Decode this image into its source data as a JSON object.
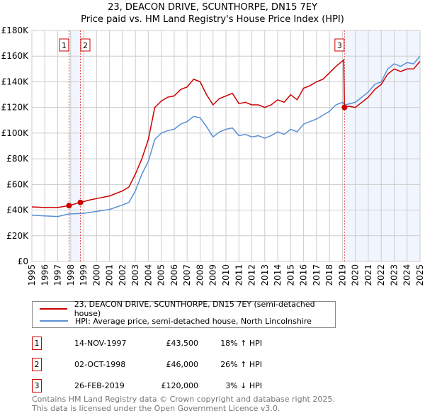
{
  "chart_data": {
    "type": "line",
    "title": "23, DEACON DRIVE, SCUNTHORPE, DN15 7EY",
    "subtitle": "Price paid vs. HM Land Registry's House Price Index (HPI)",
    "xlim": [
      1995,
      2025
    ],
    "ylim": [
      0,
      180000
    ],
    "y_ticks": [
      0,
      20000,
      40000,
      60000,
      80000,
      100000,
      120000,
      140000,
      160000,
      180000
    ],
    "y_tick_labels": [
      "£0",
      "£20K",
      "£40K",
      "£60K",
      "£80K",
      "£100K",
      "£120K",
      "£140K",
      "£160K",
      "£180K"
    ],
    "x_ticks": [
      1995,
      1996,
      1997,
      1998,
      1999,
      2000,
      2001,
      2002,
      2003,
      2004,
      2005,
      2006,
      2007,
      2008,
      2009,
      2010,
      2011,
      2012,
      2013,
      2014,
      2015,
      2016,
      2017,
      2018,
      2019,
      2020,
      2021,
      2022,
      2023,
      2024,
      2025
    ],
    "grid": true,
    "series": [
      {
        "name": "23, DEACON DRIVE, SCUNTHORPE, DN15 7EY (semi-detached house)",
        "color": "#cc0000",
        "x": [
          1995,
          1996,
          1997,
          1997.87,
          1998.75,
          1999.5,
          2000,
          2001,
          2002,
          2002.5,
          2003,
          2003.5,
          2004,
          2004.5,
          2005,
          2005.5,
          2006,
          2006.5,
          2007,
          2007.5,
          2008,
          2008.5,
          2009,
          2009.5,
          2010,
          2010.5,
          2011,
          2011.5,
          2012,
          2012.5,
          2013,
          2013.5,
          2014,
          2014.5,
          2015,
          2015.5,
          2016,
          2016.5,
          2017,
          2017.5,
          2018,
          2018.5,
          2019.1,
          2019.16,
          2019.5,
          2020,
          2020.5,
          2021,
          2021.5,
          2022,
          2022.5,
          2023,
          2023.5,
          2024,
          2024.5,
          2025
        ],
        "y": [
          42500,
          42000,
          42000,
          43500,
          46000,
          48000,
          49000,
          51000,
          55000,
          58000,
          68000,
          80000,
          95000,
          120000,
          125000,
          128000,
          129000,
          134000,
          136000,
          142000,
          140000,
          130000,
          122000,
          127000,
          129000,
          131000,
          123000,
          124000,
          122000,
          122000,
          120000,
          122000,
          126000,
          124000,
          130000,
          126000,
          135000,
          137000,
          140000,
          142000,
          147000,
          152000,
          157000,
          120000,
          121000,
          120000,
          124000,
          128000,
          134000,
          138000,
          146000,
          150000,
          148000,
          150000,
          150000,
          156000
        ]
      },
      {
        "name": "HPI: Average price, semi-detached house, North Lincolnshire",
        "color": "#5b8fd4",
        "x": [
          1995,
          1996,
          1997,
          1997.87,
          1999,
          2000,
          2001,
          2002,
          2002.5,
          2003,
          2003.5,
          2004,
          2004.5,
          2005,
          2005.5,
          2006,
          2006.5,
          2007,
          2007.5,
          2008,
          2008.5,
          2009,
          2009.5,
          2010,
          2010.5,
          2011,
          2011.5,
          2012,
          2012.5,
          2013,
          2013.5,
          2014,
          2014.5,
          2015,
          2015.5,
          2016,
          2016.5,
          2017,
          2017.5,
          2018,
          2018.5,
          2019,
          2019.2,
          2020,
          2020.5,
          2021,
          2021.5,
          2022,
          2022.5,
          2023,
          2023.5,
          2024,
          2024.5,
          2025
        ],
        "y": [
          36000,
          35500,
          35000,
          37000,
          37500,
          39000,
          40500,
          44000,
          46000,
          55000,
          68000,
          78000,
          95000,
          100000,
          102000,
          103000,
          107000,
          109000,
          113000,
          112000,
          105000,
          97000,
          101000,
          103000,
          104000,
          98000,
          99000,
          97000,
          98000,
          96000,
          98000,
          101000,
          99000,
          103000,
          101000,
          107000,
          109000,
          111000,
          114000,
          117000,
          122000,
          124000,
          122000,
          124000,
          128000,
          132000,
          138000,
          140000,
          150000,
          154000,
          152000,
          155000,
          154000,
          160000
        ]
      }
    ],
    "sales": [
      {
        "id": "1",
        "x": 1997.87,
        "y": 43500
      },
      {
        "id": "2",
        "x": 1998.75,
        "y": 46000
      },
      {
        "id": "3",
        "x": 2019.16,
        "y": 120000
      }
    ],
    "shaded": [
      [
        1997.87,
        1998.75
      ],
      [
        2019.16,
        2025
      ]
    ]
  },
  "legend": {
    "property": "23, DEACON DRIVE, SCUNTHORPE, DN15 7EY (semi-detached house)",
    "hpi": "HPI: Average price, semi-detached house, North Lincolnshire"
  },
  "transactions": [
    {
      "id": "1",
      "date": "14-NOV-1997",
      "price": "£43,500",
      "hpi": "18% ↑ HPI"
    },
    {
      "id": "2",
      "date": "02-OCT-1998",
      "price": "£46,000",
      "hpi": "26% ↑ HPI"
    },
    {
      "id": "3",
      "date": "26-FEB-2019",
      "price": "£120,000",
      "hpi": "3% ↓ HPI"
    }
  ],
  "footer": {
    "line1": "Contains HM Land Registry data © Crown copyright and database right 2025.",
    "line2": "This data is licensed under the Open Government Licence v3.0."
  }
}
